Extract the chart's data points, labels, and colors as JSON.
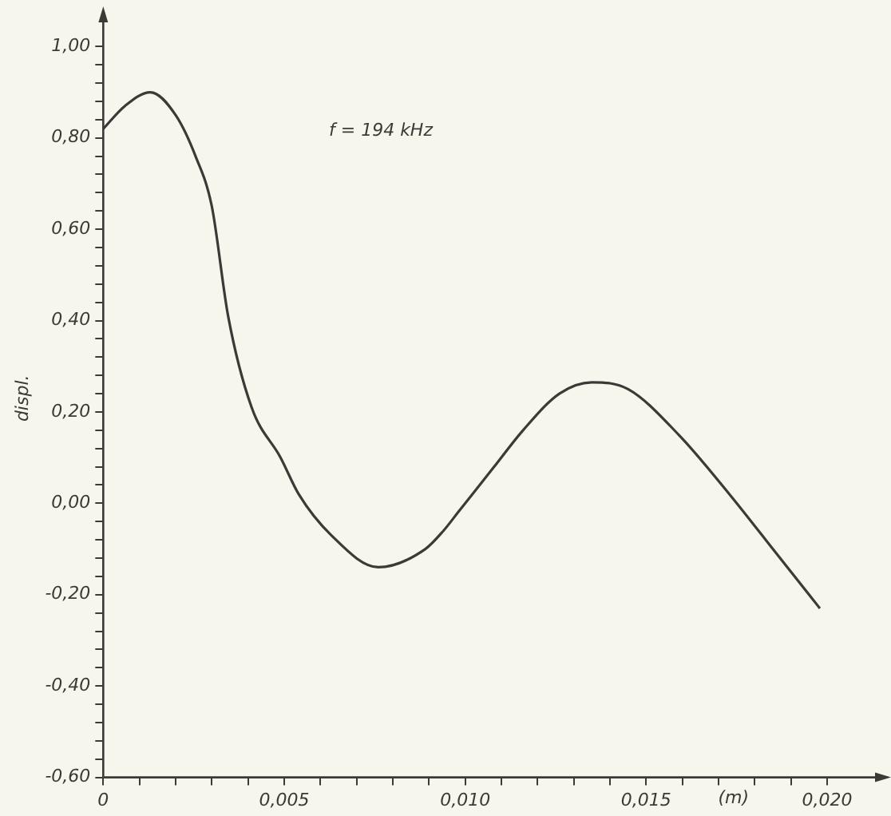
{
  "chart_data": {
    "type": "line",
    "xlabel": "(m)",
    "ylabel": "displ.",
    "annotations": [
      "f = 194 kHz"
    ],
    "series": [
      {
        "color": "#3a3a36",
        "x": [
          0,
          0.0006,
          0.0013,
          0.002,
          0.00255,
          0.003,
          0.00345,
          0.0041,
          0.0049,
          0.0054,
          0.0063,
          0.0076,
          0.0089,
          0.0094,
          0.0098,
          0.0108,
          0.0116,
          0.0126,
          0.0135,
          0.0145,
          0.0159,
          0.0173,
          0.0186,
          0.0198
        ],
        "values": [
          0.82,
          0.87,
          0.9,
          0.85,
          0.76,
          0.65,
          0.41,
          0.21,
          0.1,
          0.02,
          -0.07,
          -0.14,
          -0.1,
          -0.06,
          -0.02,
          0.08,
          0.16,
          0.24,
          0.265,
          0.25,
          0.15,
          0.02,
          -0.11,
          -0.23
        ]
      }
    ],
    "xlim": [
      0,
      0.0215
    ],
    "ylim": [
      -0.6,
      1.06
    ],
    "xticks": [
      {
        "value": 0,
        "label": "0"
      },
      {
        "value": 0.001,
        "label": null
      },
      {
        "value": 0.002,
        "label": null
      },
      {
        "value": 0.003,
        "label": null
      },
      {
        "value": 0.004,
        "label": null
      },
      {
        "value": 0.005,
        "label": "0,005"
      },
      {
        "value": 0.006,
        "label": null
      },
      {
        "value": 0.007,
        "label": null
      },
      {
        "value": 0.008,
        "label": null
      },
      {
        "value": 0.009,
        "label": null
      },
      {
        "value": 0.01,
        "label": "0,010"
      },
      {
        "value": 0.011,
        "label": null
      },
      {
        "value": 0.012,
        "label": null
      },
      {
        "value": 0.013,
        "label": null
      },
      {
        "value": 0.014,
        "label": null
      },
      {
        "value": 0.015,
        "label": "0,015"
      },
      {
        "value": 0.016,
        "label": null
      },
      {
        "value": 0.017,
        "label": null
      },
      {
        "value": 0.018,
        "label": null
      },
      {
        "value": 0.019,
        "label": null
      },
      {
        "value": 0.02,
        "label": "0,020"
      }
    ],
    "yticks": [
      {
        "value": -0.6,
        "label": "-0,60"
      },
      {
        "value": -0.56,
        "label": null
      },
      {
        "value": -0.52,
        "label": null
      },
      {
        "value": -0.48,
        "label": null
      },
      {
        "value": -0.44,
        "label": null
      },
      {
        "value": -0.4,
        "label": "-0,40"
      },
      {
        "value": -0.36,
        "label": null
      },
      {
        "value": -0.32,
        "label": null
      },
      {
        "value": -0.28,
        "label": null
      },
      {
        "value": -0.24,
        "label": null
      },
      {
        "value": -0.2,
        "label": "-0,20"
      },
      {
        "value": -0.16,
        "label": null
      },
      {
        "value": -0.12,
        "label": null
      },
      {
        "value": -0.08,
        "label": null
      },
      {
        "value": -0.04,
        "label": null
      },
      {
        "value": 0,
        "label": "0,00"
      },
      {
        "value": 0.04,
        "label": null
      },
      {
        "value": 0.08,
        "label": null
      },
      {
        "value": 0.12,
        "label": null
      },
      {
        "value": 0.16,
        "label": null
      },
      {
        "value": 0.2,
        "label": "0,20"
      },
      {
        "value": 0.24,
        "label": null
      },
      {
        "value": 0.28,
        "label": null
      },
      {
        "value": 0.32,
        "label": null
      },
      {
        "value": 0.36,
        "label": null
      },
      {
        "value": 0.4,
        "label": "0,40"
      },
      {
        "value": 0.44,
        "label": null
      },
      {
        "value": 0.48,
        "label": null
      },
      {
        "value": 0.52,
        "label": null
      },
      {
        "value": 0.56,
        "label": null
      },
      {
        "value": 0.6,
        "label": "0,60"
      },
      {
        "value": 0.64,
        "label": null
      },
      {
        "value": 0.68,
        "label": null
      },
      {
        "value": 0.72,
        "label": null
      },
      {
        "value": 0.76,
        "label": null
      },
      {
        "value": 0.8,
        "label": "0,80"
      },
      {
        "value": 0.84,
        "label": null
      },
      {
        "value": 0.88,
        "label": null
      },
      {
        "value": 0.92,
        "label": null
      },
      {
        "value": 0.96,
        "label": null
      },
      {
        "value": 1,
        "label": "1,00"
      }
    ],
    "grid": false,
    "legend": false,
    "marker": "none",
    "line_style": "solid"
  }
}
